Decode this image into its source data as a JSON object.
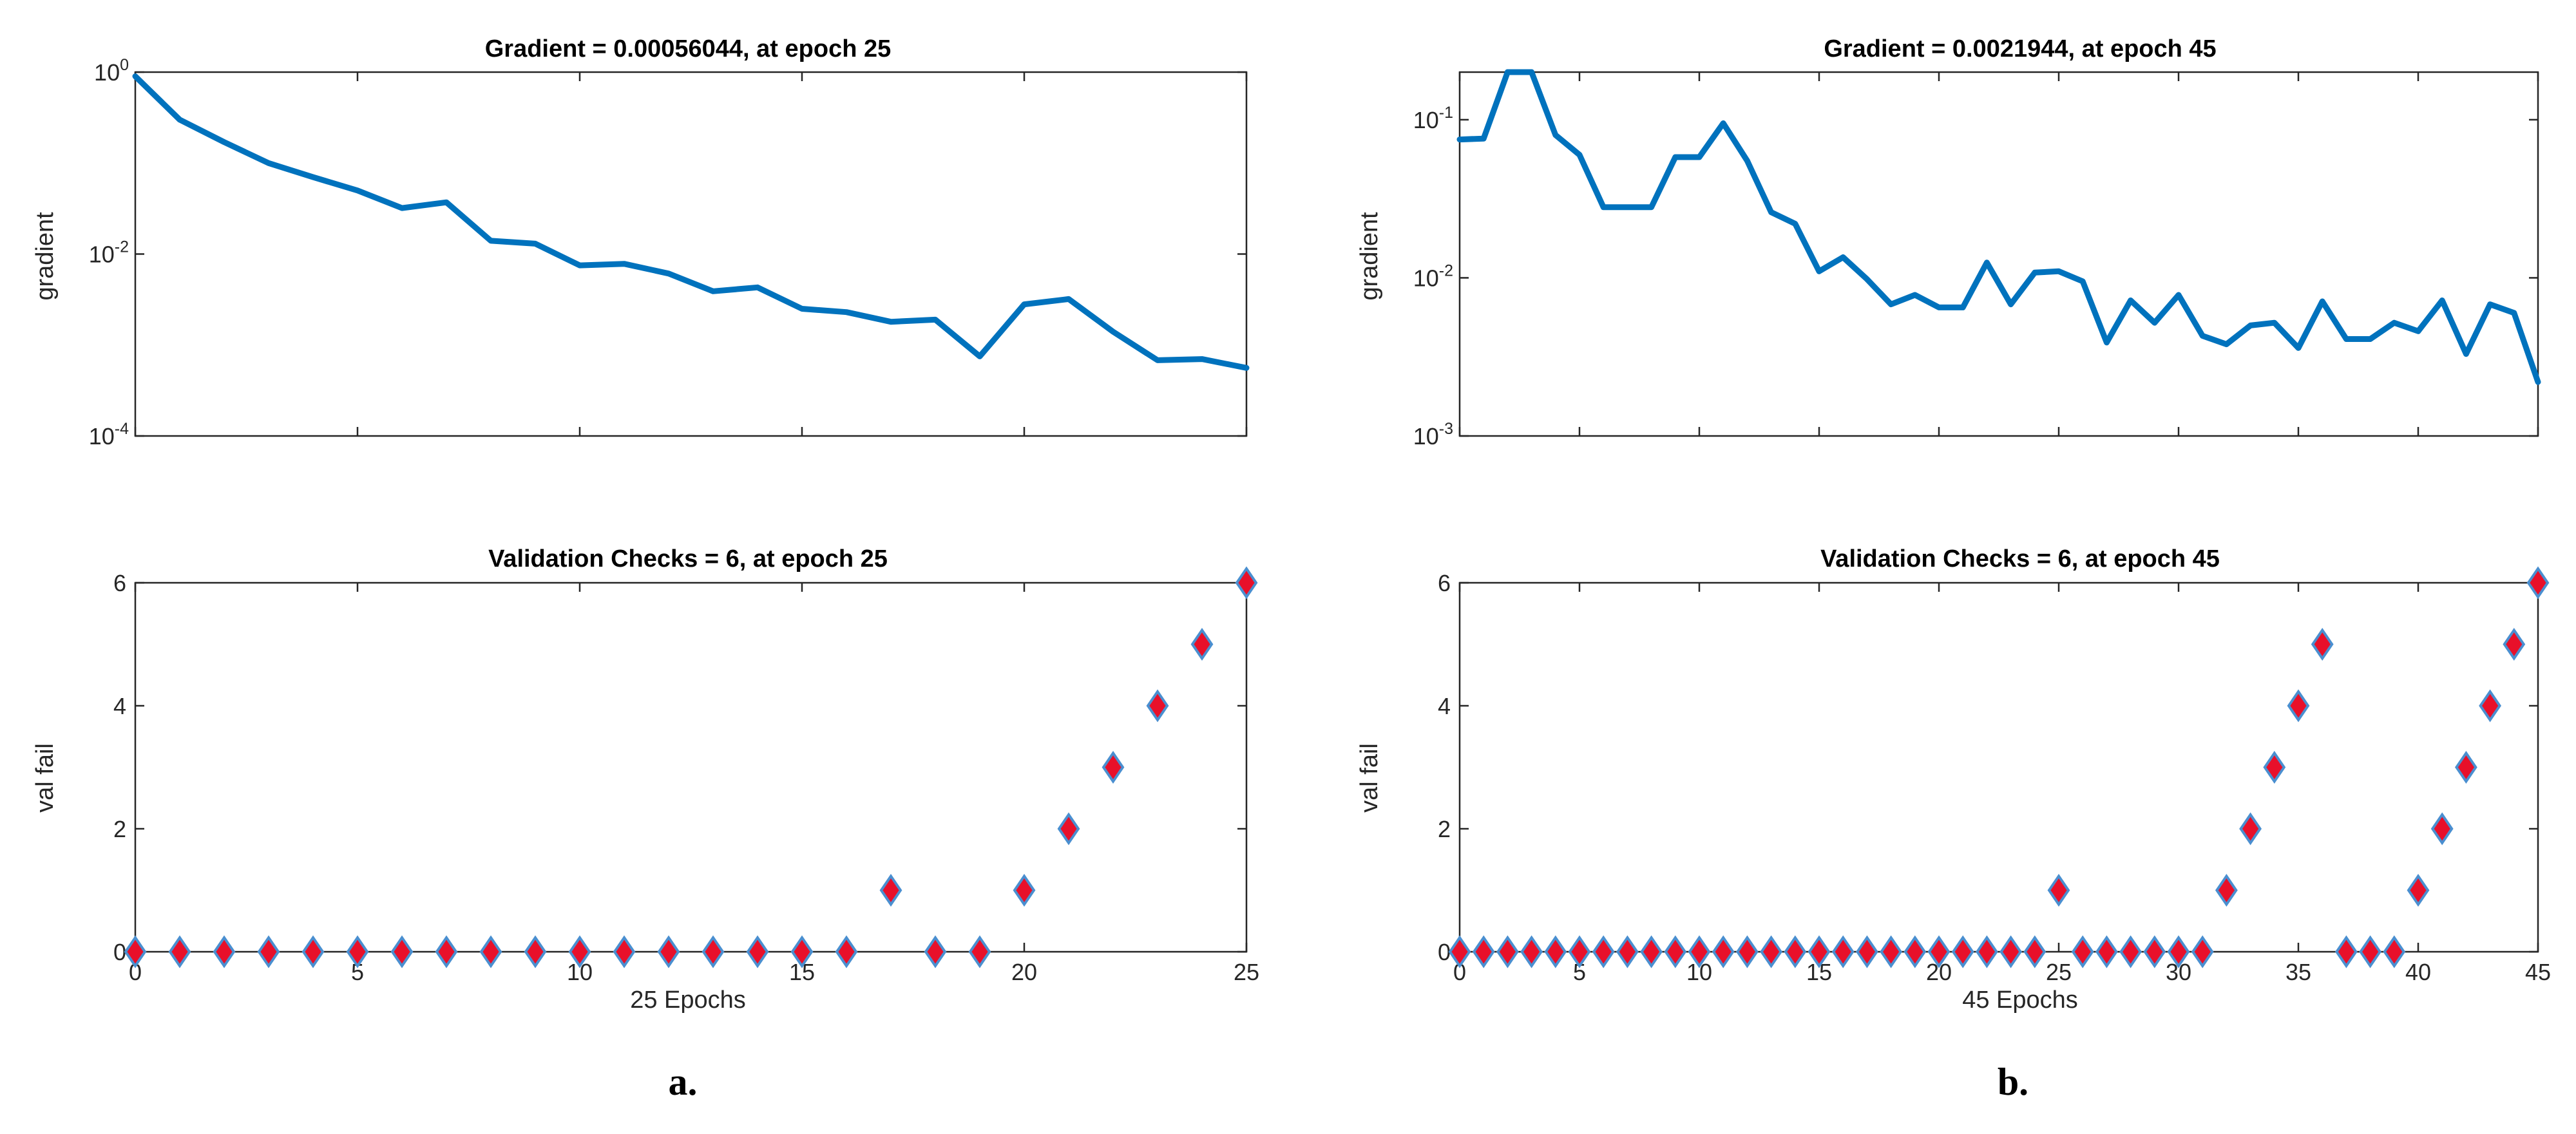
{
  "colors": {
    "line": "#0072BD",
    "marker_fill": "#E8102A",
    "marker_edge": "#4A8FD0",
    "axis": "#262626"
  },
  "panel_labels": [
    "a.",
    "b."
  ],
  "chart_data": [
    {
      "panel": "a.",
      "type": "line",
      "yscale": "log",
      "title": "Gradient = 0.00056044, at epoch 25",
      "xlabel": "",
      "ylabel": "gradient",
      "xlim": [
        0,
        25
      ],
      "ylim": [
        0.0001,
        1
      ],
      "yticks": [
        {
          "base": "10",
          "exp": "-4",
          "value": 0.0001
        },
        {
          "base": "10",
          "exp": "-2",
          "value": 0.01
        },
        {
          "base": "10",
          "exp": "0",
          "value": 1
        }
      ],
      "xticks": [
        0,
        5,
        10,
        15,
        20,
        25
      ],
      "x": [
        0,
        1,
        2,
        3,
        4,
        5,
        6,
        7,
        8,
        9,
        10,
        11,
        12,
        13,
        14,
        15,
        16,
        17,
        18,
        19,
        20,
        21,
        22,
        23,
        24,
        25
      ],
      "values": [
        0.9,
        0.3,
        0.17,
        0.1,
        0.07,
        0.05,
        0.032,
        0.037,
        0.014,
        0.013,
        0.0075,
        0.0078,
        0.0061,
        0.0039,
        0.0043,
        0.0025,
        0.0023,
        0.0018,
        0.0019,
        0.00075,
        0.0028,
        0.0032,
        0.0014,
        0.00068,
        0.0007,
        0.00056044
      ]
    },
    {
      "panel": "a.",
      "type": "scatter",
      "title": "Validation Checks = 6, at epoch 25",
      "xlabel": "25 Epochs",
      "ylabel": "val fail",
      "xlim": [
        0,
        25
      ],
      "ylim": [
        0,
        6
      ],
      "yticks": [
        0,
        2,
        4,
        6
      ],
      "xticks": [
        0,
        5,
        10,
        15,
        20,
        25
      ],
      "x": [
        0,
        1,
        2,
        3,
        4,
        5,
        6,
        7,
        8,
        9,
        10,
        11,
        12,
        13,
        14,
        15,
        16,
        17,
        18,
        19,
        20,
        21,
        22,
        23,
        24,
        25
      ],
      "values": [
        0,
        0,
        0,
        0,
        0,
        0,
        0,
        0,
        0,
        0,
        0,
        0,
        0,
        0,
        0,
        0,
        0,
        1,
        0,
        0,
        1,
        2,
        3,
        4,
        5,
        6
      ]
    },
    {
      "panel": "b.",
      "type": "line",
      "yscale": "log",
      "title": "Gradient = 0.0021944, at epoch 45",
      "xlabel": "",
      "ylabel": "gradient",
      "xlim": [
        0,
        45
      ],
      "ylim": [
        0.001,
        0.2
      ],
      "yticks": [
        {
          "base": "10",
          "exp": "-3",
          "value": 0.001
        },
        {
          "base": "10",
          "exp": "-2",
          "value": 0.01
        },
        {
          "base": "10",
          "exp": "-1",
          "value": 0.1
        }
      ],
      "xticks": [
        0,
        5,
        10,
        15,
        20,
        25,
        30,
        35,
        40,
        45
      ],
      "x": [
        0,
        1,
        2,
        3,
        4,
        5,
        6,
        7,
        8,
        9,
        10,
        11,
        12,
        13,
        14,
        15,
        16,
        17,
        18,
        19,
        20,
        21,
        22,
        23,
        24,
        25,
        26,
        27,
        28,
        29,
        30,
        31,
        32,
        33,
        34,
        35,
        36,
        37,
        38,
        39,
        40,
        41,
        42,
        43,
        44,
        45
      ],
      "values": [
        0.075,
        0.076,
        0.2,
        0.2,
        0.08,
        0.06,
        0.028,
        0.028,
        0.028,
        0.058,
        0.058,
        0.095,
        0.055,
        0.026,
        0.022,
        0.011,
        0.0135,
        0.0098,
        0.0068,
        0.0078,
        0.0065,
        0.0065,
        0.0125,
        0.0068,
        0.0108,
        0.011,
        0.0095,
        0.0039,
        0.0072,
        0.0052,
        0.0078,
        0.0043,
        0.0038,
        0.005,
        0.0052,
        0.0036,
        0.0071,
        0.0041,
        0.0041,
        0.0052,
        0.0046,
        0.0072,
        0.0033,
        0.0068,
        0.006,
        0.0021944
      ]
    },
    {
      "panel": "b.",
      "type": "scatter",
      "title": "Validation Checks = 6, at epoch 45",
      "xlabel": "45 Epochs",
      "ylabel": "val fail",
      "xlim": [
        0,
        45
      ],
      "ylim": [
        0,
        6
      ],
      "yticks": [
        0,
        2,
        4,
        6
      ],
      "xticks": [
        0,
        5,
        10,
        15,
        20,
        25,
        30,
        35,
        40,
        45
      ],
      "x": [
        0,
        1,
        2,
        3,
        4,
        5,
        6,
        7,
        8,
        9,
        10,
        11,
        12,
        13,
        14,
        15,
        16,
        17,
        18,
        19,
        20,
        21,
        22,
        23,
        24,
        25,
        26,
        27,
        28,
        29,
        30,
        31,
        32,
        33,
        34,
        35,
        36,
        37,
        38,
        39,
        40,
        41,
        42,
        43,
        44,
        45
      ],
      "values": [
        0,
        0,
        0,
        0,
        0,
        0,
        0,
        0,
        0,
        0,
        0,
        0,
        0,
        0,
        0,
        0,
        0,
        0,
        0,
        0,
        0,
        0,
        0,
        0,
        0,
        1,
        0,
        0,
        0,
        0,
        0,
        0,
        1,
        2,
        3,
        4,
        5,
        0,
        0,
        0,
        1,
        2,
        3,
        4,
        5,
        6
      ]
    }
  ]
}
